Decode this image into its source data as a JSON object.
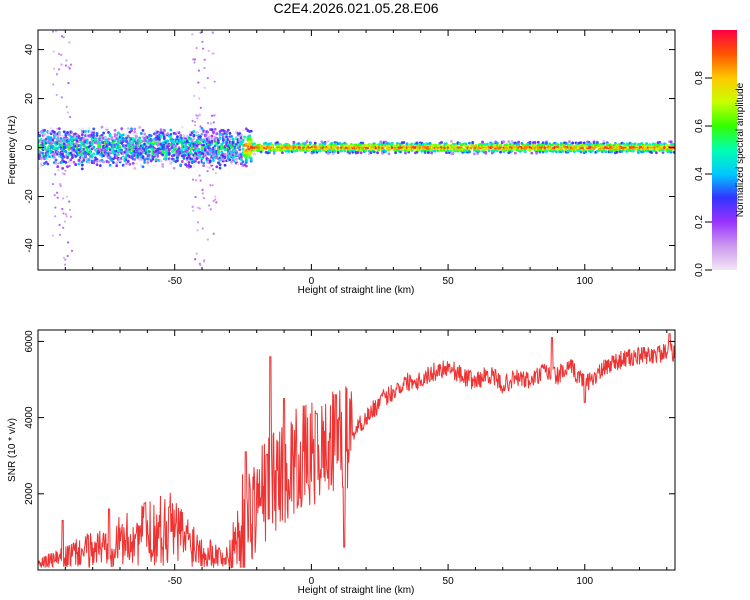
{
  "title": "C2E4.2026.021.05.28.E06",
  "chart_data": [
    {
      "type": "heatmap",
      "xlabel": "Height of straight line (km)",
      "ylabel": "Frequency (Hz)",
      "xlim": [
        -100,
        133
      ],
      "ylim": [
        -50,
        48
      ],
      "xticks": [
        -50,
        0,
        50,
        100
      ],
      "yticks": [
        -40,
        -20,
        0,
        20,
        40
      ],
      "xtick_labels": [
        "-50",
        "0",
        "50",
        "100"
      ],
      "ytick_labels": [
        "-40",
        "-20",
        "0",
        "20",
        "40"
      ],
      "colorbar": {
        "label": "Normalized spectral amplitude",
        "range": [
          0,
          1
        ],
        "ticks": [
          0.0,
          0.2,
          0.4,
          0.6,
          0.8
        ],
        "tick_labels": [
          "0.0",
          "0.2",
          "0.4",
          "0.6",
          "0.8"
        ],
        "colors": [
          "#f2e6f7",
          "#cc99ee",
          "#9933ff",
          "#3333ff",
          "#00c8ff",
          "#00ffb0",
          "#33ff00",
          "#c8ff00",
          "#ffc800",
          "#ff5500",
          "#ff0044"
        ]
      }
    },
    {
      "type": "line",
      "xlabel": "Height of straight line (km)",
      "ylabel": "SNR (10 * v/v)",
      "xlim": [
        -100,
        133
      ],
      "ylim": [
        0,
        6300
      ],
      "xticks": [
        -50,
        0,
        50,
        100
      ],
      "yticks": [
        2000,
        4000,
        6000
      ],
      "xtick_labels": [
        "-50",
        "0",
        "50",
        "100"
      ],
      "ytick_labels": [
        "2000",
        "4000",
        "6000"
      ],
      "line_color": "#ee3333",
      "trend": {
        "x": [
          -100,
          -90,
          -80,
          -70,
          -60,
          -52,
          -45,
          -40,
          -35,
          -30,
          -25,
          -20,
          -15,
          -10,
          -5,
          0,
          5,
          10,
          15,
          20,
          25,
          30,
          35,
          40,
          45,
          50,
          55,
          60,
          65,
          70,
          75,
          80,
          85,
          90,
          95,
          100,
          105,
          110,
          115,
          120,
          125,
          130,
          133
        ],
        "y": [
          150,
          350,
          550,
          750,
          950,
          1100,
          800,
          550,
          400,
          300,
          1200,
          1800,
          2300,
          2600,
          2900,
          3000,
          3200,
          3350,
          3600,
          4000,
          4400,
          4700,
          4950,
          5000,
          5200,
          5350,
          5100,
          4950,
          5150,
          4850,
          5050,
          4950,
          5200,
          5100,
          5300,
          4900,
          5150,
          5450,
          5550,
          5600,
          5650,
          5700,
          5700
        ]
      },
      "spikes": [
        {
          "x": -91,
          "y": 1300
        },
        {
          "x": -74,
          "y": 1600
        },
        {
          "x": -61,
          "y": 1750
        },
        {
          "x": -52,
          "y": 1650
        },
        {
          "x": -32,
          "y": 300
        },
        {
          "x": -24,
          "y": 3100
        },
        {
          "x": -15,
          "y": 5600
        },
        {
          "x": -10,
          "y": 4500
        },
        {
          "x": 2,
          "y": 4100
        },
        {
          "x": 9,
          "y": 4600
        },
        {
          "x": 12,
          "y": 600
        },
        {
          "x": 88,
          "y": 6100
        },
        {
          "x": 100,
          "y": 4400
        },
        {
          "x": 131,
          "y": 6200
        }
      ]
    }
  ]
}
